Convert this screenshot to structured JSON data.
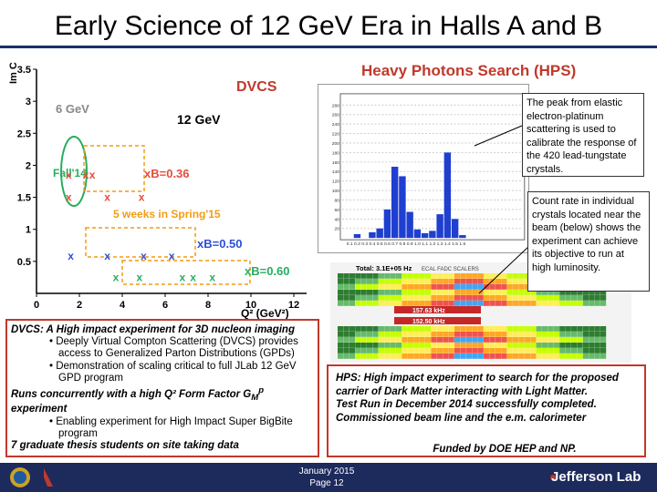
{
  "slide": {
    "title": "Early Science of 12 GeV Era in Halls A and B"
  },
  "dvcs_chart": {
    "label": "DVCS",
    "beam_6gev": "6 GeV",
    "beam_12gev": "12 GeV",
    "ylabel": "Im C",
    "xlabel": "Q² (GeV²)",
    "x_ticks": [
      "0",
      "2",
      "4",
      "6",
      "8",
      "10",
      "12"
    ],
    "y_ticks": [
      "0.5",
      "1",
      "1.5",
      "2",
      "2.5",
      "3",
      "3.5"
    ],
    "fall14": "Fall'14",
    "xb036": "xB=0.36",
    "xb050": "xB=0.50",
    "xb060": "xB=0.60",
    "spring15": "5 weeks in Spring'15"
  },
  "chart_data": [
    {
      "type": "scatter",
      "title": "",
      "xlabel": "Q² (GeV²)",
      "ylabel": "Im C",
      "xlim": [
        0,
        12
      ],
      "ylim": [
        0,
        3.5
      ],
      "annotations": [
        "DVCS",
        "6 GeV",
        "12 GeV",
        "Fall'14",
        "xB=0.36",
        "5 weeks in Spring'15",
        "xB=0.50",
        "xB=0.60"
      ],
      "series": [
        {
          "name": "",
          "x": [
            1.5,
            2.3,
            2.6
          ],
          "y": [
            1.85,
            1.85,
            1.85
          ]
        },
        {
          "name": "",
          "x": [
            1.5,
            3.3,
            4.9
          ],
          "y": [
            1.5,
            1.5,
            1.5
          ]
        },
        {
          "name": "",
          "x": [
            1.6,
            3.3,
            5.0,
            6.3
          ],
          "y": [
            0.58,
            0.58,
            0.58,
            0.58
          ]
        },
        {
          "name": "",
          "x": [
            3.7,
            4.8,
            6.8,
            7.3,
            8.2
          ],
          "y": [
            0.25,
            0.25,
            0.25,
            0.25,
            0.25
          ]
        }
      ]
    },
    {
      "type": "bar",
      "title": "",
      "xlim": [
        0,
        2.4
      ],
      "ylim": [
        0,
        300
      ],
      "x_ticks": [
        "0.1",
        "0.2",
        "0.3",
        "0.4",
        "0.5",
        "0.6",
        "0.7",
        "0.8",
        "0.9",
        "1.0",
        "1.1",
        "1.2",
        "1.3",
        "1.4",
        "1.5",
        "1.6"
      ],
      "y_ticks": [
        "20",
        "40",
        "60",
        "80",
        "100",
        "120",
        "140",
        "160",
        "180",
        "200",
        "220",
        "240",
        "260",
        "280"
      ],
      "series": [
        {
          "name": "",
          "x": [
            0.2,
            0.4,
            0.5,
            0.6,
            0.7,
            0.8,
            0.9,
            1.0,
            1.1,
            1.2,
            1.3,
            1.4,
            1.5,
            1.6
          ],
          "y": [
            8,
            12,
            20,
            60,
            150,
            130,
            55,
            18,
            10,
            15,
            50,
            180,
            40,
            6
          ]
        }
      ]
    }
  ],
  "hps": {
    "title": "Heavy Photons Search (HPS)",
    "callout_peak": "The peak from elastic electron-platinum scattering is used to calibrate the response of the 420 lead-tungstate crystals.",
    "callout_rate": "Count rate in individual crystals located near the beam (below) shows the experiment can achieve its objective to run at high luminosity.",
    "total_rate": "Total: 3.1E+05 Hz",
    "rate_top": "157.63 kHz",
    "rate_bottom": "152.50 kHz",
    "ecal_label": "ECAL FADC SCALERS"
  },
  "dvcs_text": {
    "heading": "DVCS: A High impact experiment for 3D nucleon imaging",
    "b1": "Deeply Virtual Compton Scattering (DVCS) provides access to Generalized Parton Distributions (GPDs)",
    "b2": "Demonstration of scaling critical to full JLab 12 GeV GPD program",
    "runs": "Runs concurrently with a high Q² Form Factor G",
    "gm": "M",
    "gm_sup": "p",
    "experiment": "experiment",
    "b3": "Enabling experiment for High Impact Super BigBite program",
    "students": "7 graduate thesis students on site taking data"
  },
  "hps_text": {
    "l1": "HPS: High impact experiment to search for the proposed carrier of Dark Matter interacting with Light Matter.",
    "l2": "Test Run in December 2014 successfully completed.",
    "l3": "Commissioned beam line and the e.m. calorimeter",
    "funded": "Funded by DOE HEP and NP."
  },
  "footer": {
    "date": "January 2015",
    "page": "Page 12",
    "lab": "Jefferson Lab"
  },
  "colors": {
    "title_line": "#1a2c6a",
    "accent_red": "#c0392b",
    "hist_blue": "#1f3fd0",
    "footer_bg": "#1d2a5c",
    "marker_blue": "#2b4fd8",
    "marker_red": "#e74c3c",
    "marker_green": "#27ae60",
    "orange": "#f39c12"
  }
}
